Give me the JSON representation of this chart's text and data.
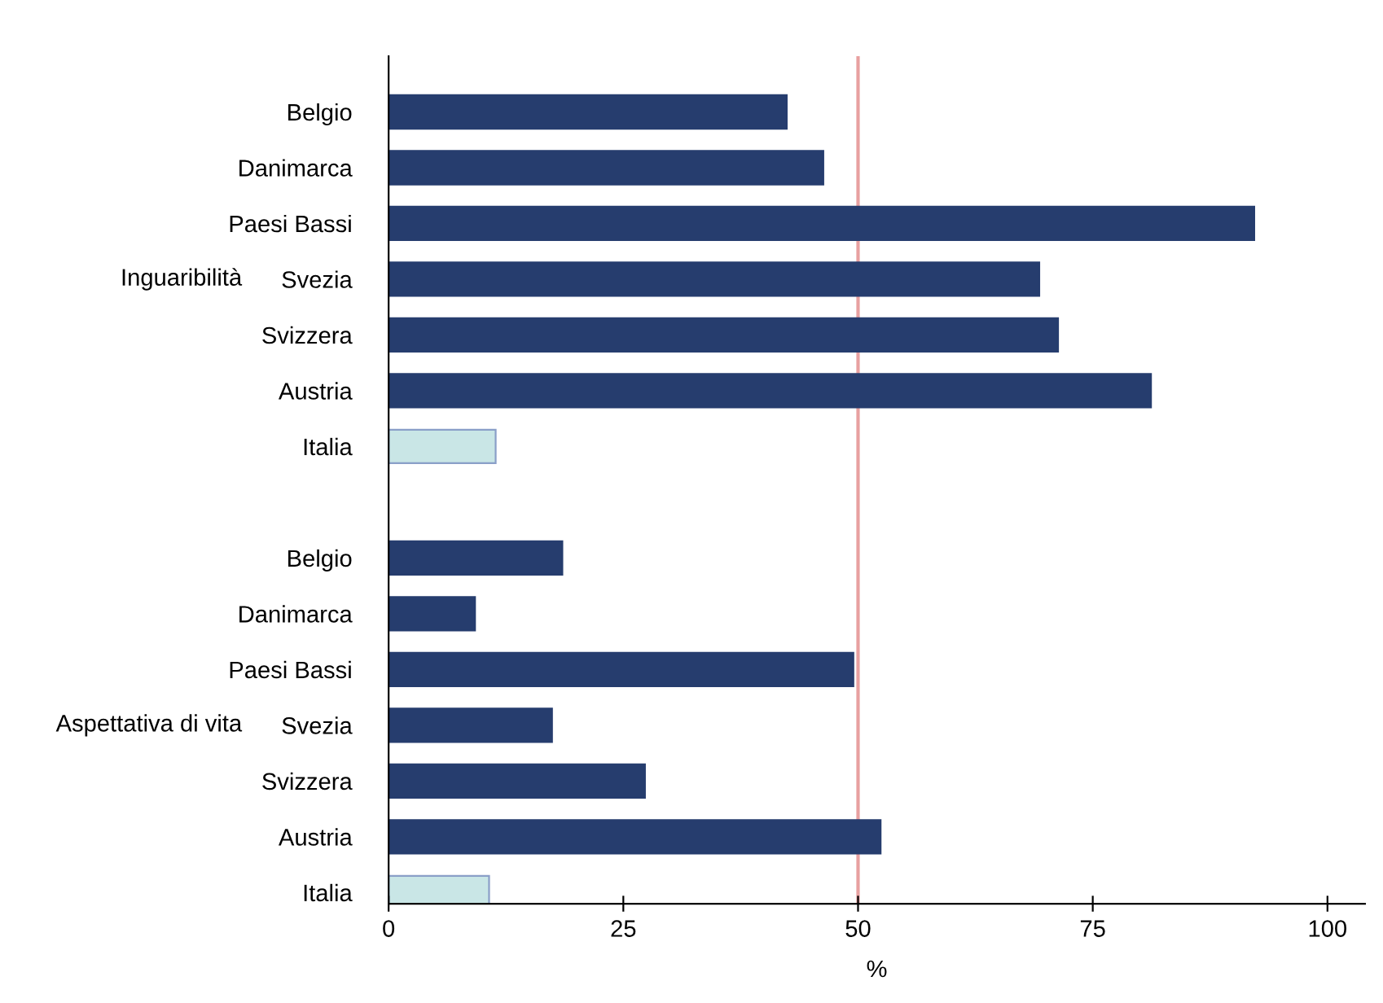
{
  "chart_data": {
    "type": "bar",
    "orientation": "horizontal",
    "xlabel": "%",
    "categories": [
      "Belgio",
      "Danimarca",
      "Paesi Bassi",
      "Svezia",
      "Svizzera",
      "Austria",
      "Italia",
      null,
      "Belgio",
      "Danimarca",
      "Paesi Bassi",
      "Svezia",
      "Svizzera",
      "Austria",
      "Italia"
    ],
    "values": [
      42.4,
      46.3,
      92.2,
      69.3,
      71.3,
      81.2,
      11.4,
      null,
      18.5,
      9.2,
      49.5,
      17.4,
      27.3,
      52.4,
      10.7
    ],
    "colors": [
      "#263d6e",
      "#263d6e",
      "#263d6e",
      "#263d6e",
      "#263d6e",
      "#263d6e",
      "#c9e6e6",
      "#263d6e",
      "#263d6e",
      "#263d6e",
      "#263d6e",
      "#263d6e",
      "#263d6e",
      "#263d6e",
      "#c9e6e6"
    ],
    "xlim": [
      0,
      104
    ],
    "xticks": [
      0,
      25,
      50,
      75,
      100
    ],
    "ref_lines": [
      {
        "axis": "x",
        "value": 50,
        "color": "#e8a0a0"
      }
    ],
    "annotations": [
      "Inguaribilità",
      "Aspettativa di vita"
    ],
    "grid": false,
    "legend": false
  }
}
